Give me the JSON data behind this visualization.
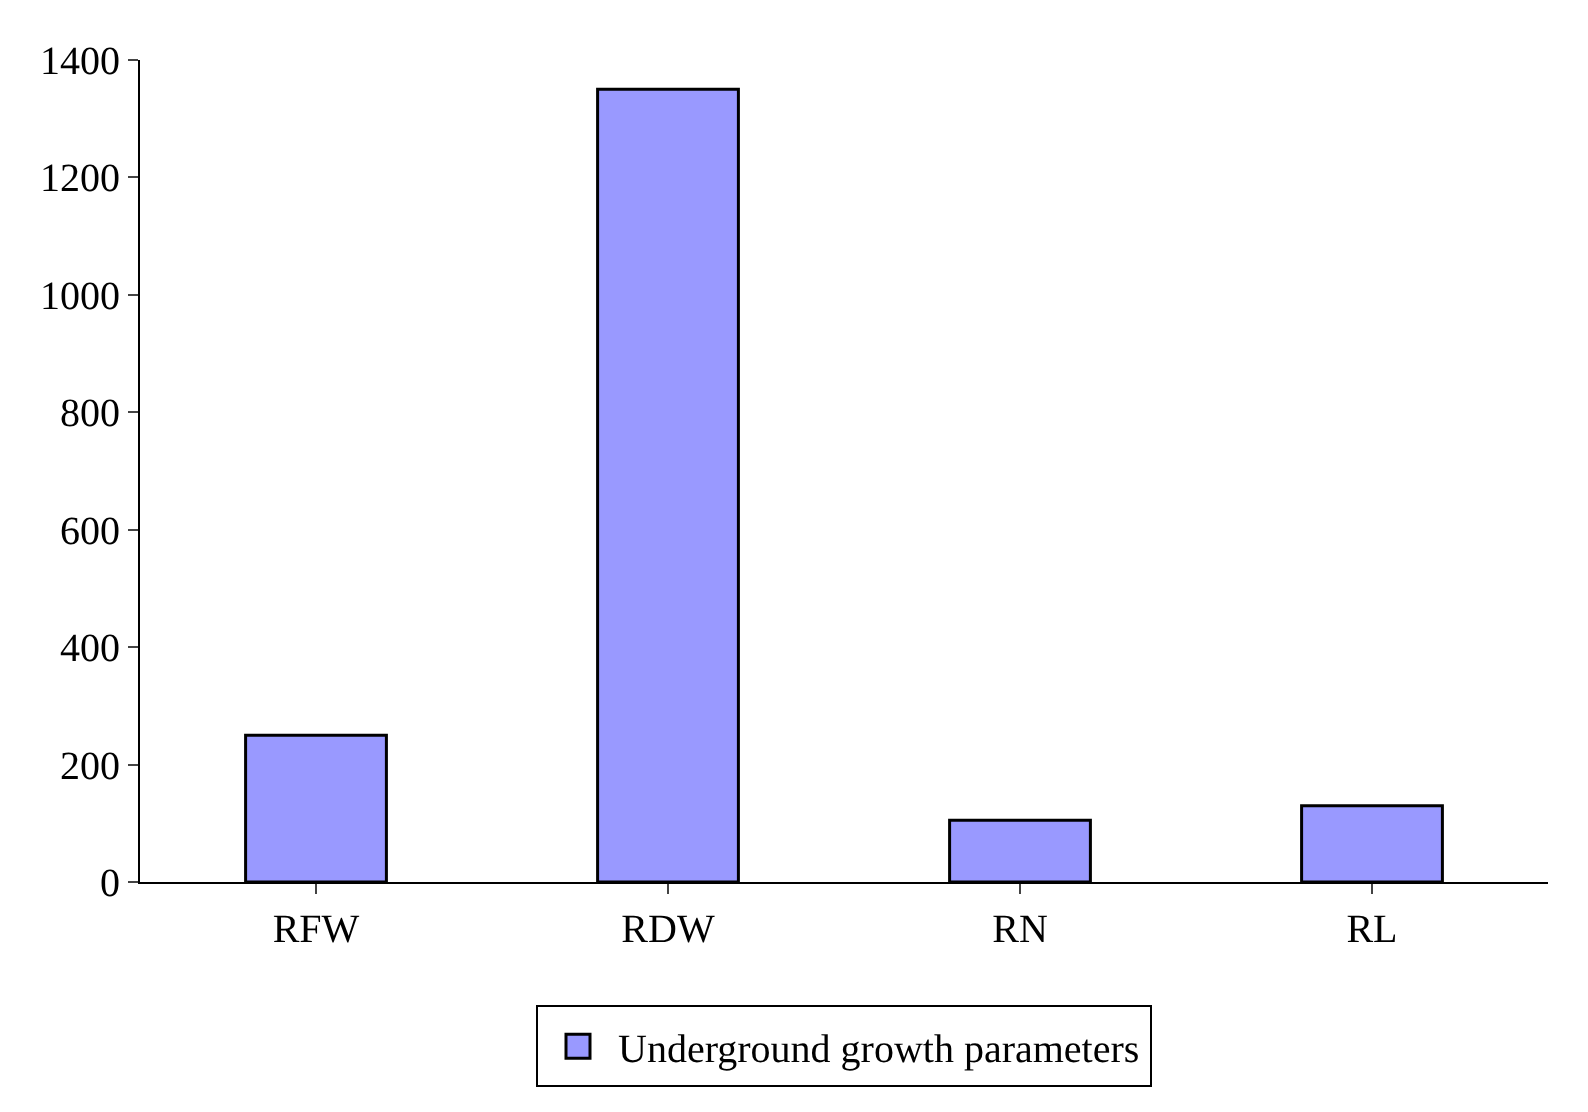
{
  "chart_data": {
    "type": "bar",
    "categories": [
      "RFW",
      "RDW",
      "RN",
      "RL"
    ],
    "series": [
      {
        "name": "Underground growth parameters",
        "color": "#9999ff",
        "values": [
          250,
          1350,
          105,
          130
        ]
      }
    ],
    "ylim": [
      0,
      1400
    ],
    "yticks": [
      0,
      200,
      400,
      600,
      800,
      1000,
      1200,
      1400
    ],
    "grid": false,
    "legend": "bottom"
  }
}
